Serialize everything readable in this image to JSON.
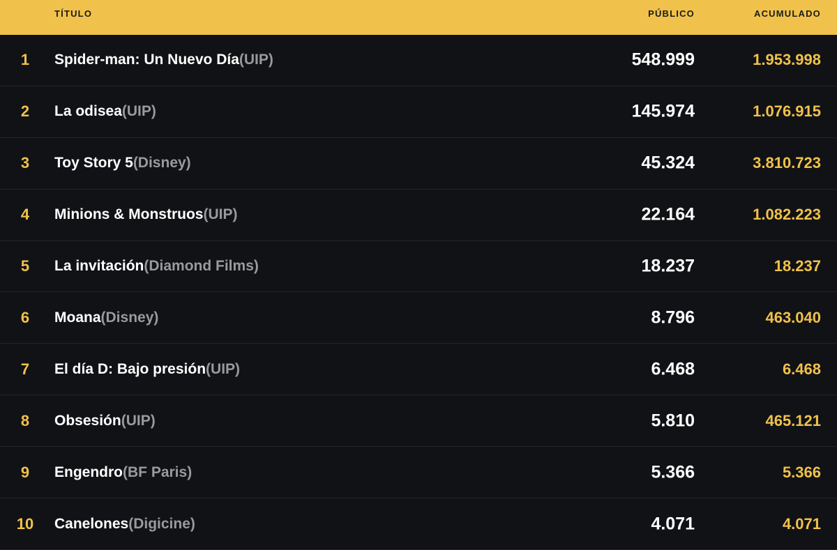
{
  "header": {
    "title": "TÍTULO",
    "audience": "PÚBLICO",
    "cumulative": "ACUMULADO"
  },
  "rows": [
    {
      "rank": "1",
      "title": "Spider-man: Un Nuevo Día",
      "distributor": "(UIP)",
      "audience": "548.999",
      "cumulative": "1.953.998"
    },
    {
      "rank": "2",
      "title": "La odisea",
      "distributor": "(UIP)",
      "audience": "145.974",
      "cumulative": "1.076.915"
    },
    {
      "rank": "3",
      "title": "Toy Story 5",
      "distributor": "(Disney)",
      "audience": "45.324",
      "cumulative": "3.810.723"
    },
    {
      "rank": "4",
      "title": "Minions & Monstruos",
      "distributor": "(UIP)",
      "audience": "22.164",
      "cumulative": "1.082.223"
    },
    {
      "rank": "5",
      "title": "La invitación",
      "distributor": "(Diamond Films)",
      "audience": "18.237",
      "cumulative": "18.237"
    },
    {
      "rank": "6",
      "title": "Moana",
      "distributor": "(Disney)",
      "audience": "8.796",
      "cumulative": "463.040"
    },
    {
      "rank": "7",
      "title": "El día D: Bajo presión",
      "distributor": "(UIP)",
      "audience": "6.468",
      "cumulative": "6.468"
    },
    {
      "rank": "8",
      "title": "Obsesión",
      "distributor": "(UIP)",
      "audience": "5.810",
      "cumulative": "465.121"
    },
    {
      "rank": "9",
      "title": "Engendro",
      "distributor": "(BF Paris)",
      "audience": "5.366",
      "cumulative": "5.366"
    },
    {
      "rank": "10",
      "title": "Canelones",
      "distributor": "(Digicine)",
      "audience": "4.071",
      "cumulative": "4.071"
    }
  ]
}
